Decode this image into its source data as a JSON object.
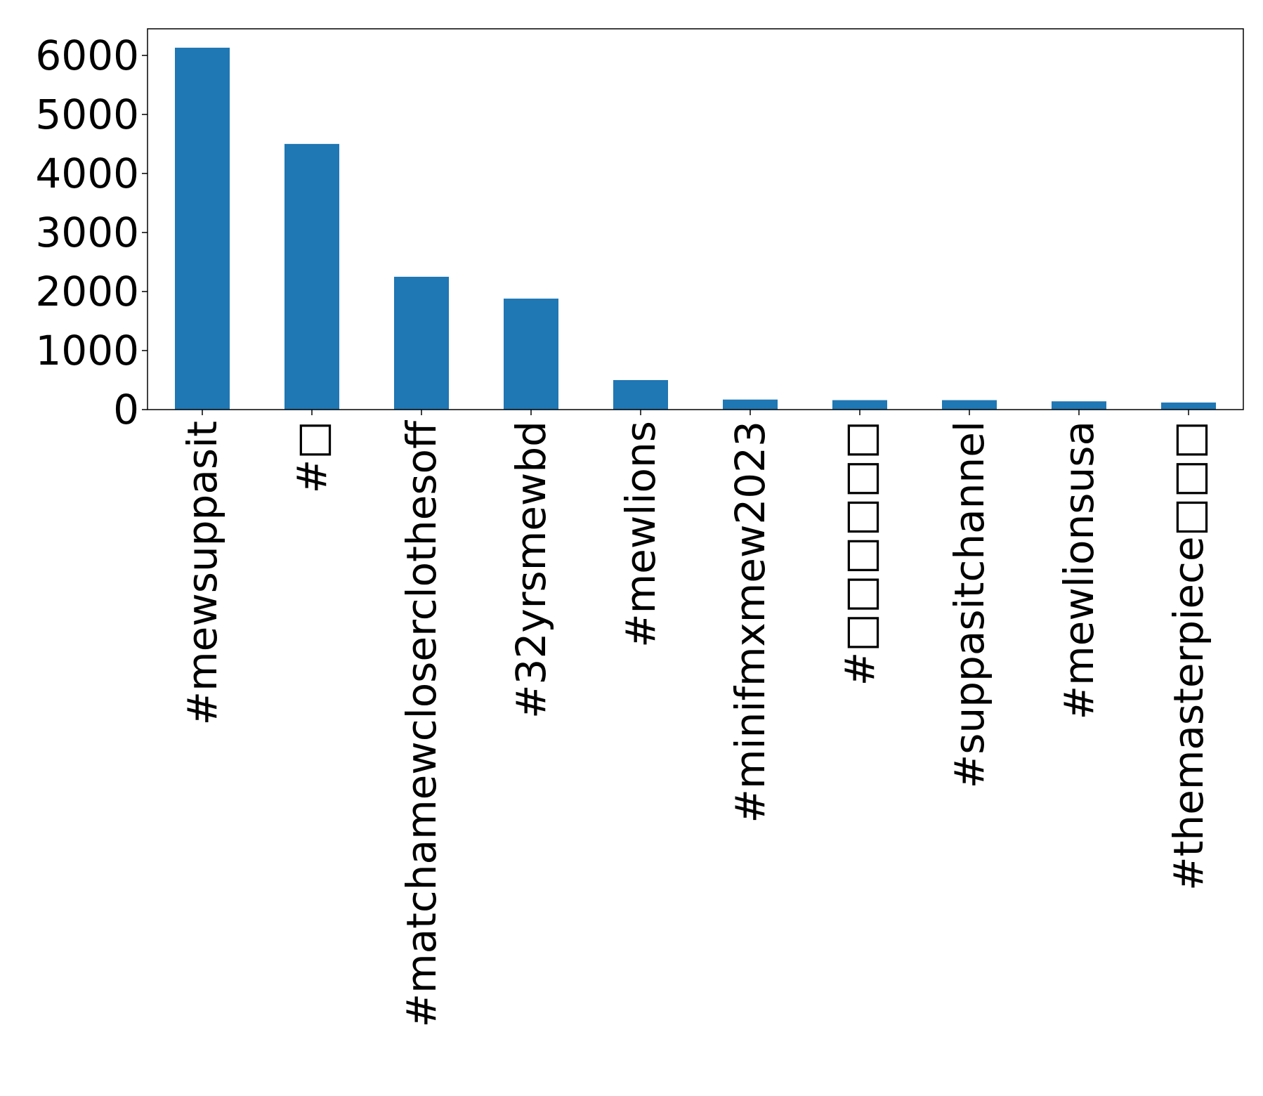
{
  "chart_data": {
    "type": "bar",
    "title": "",
    "xlabel": "",
    "ylabel": "",
    "categories": [
      "#mewsuppasit",
      "#□",
      "#matchamewcloserclothesoff",
      "#32yrsmewbd",
      "#mewlions",
      "#minifmxmew2023",
      "#□□□□□□",
      "#suppasitchannel",
      "#mewlionsusa",
      "#themasterpiece□□□"
    ],
    "values": [
      6130,
      4500,
      2250,
      1880,
      500,
      170,
      160,
      160,
      140,
      120
    ],
    "ylim": [
      0,
      6450
    ],
    "yticks": [
      0,
      1000,
      2000,
      3000,
      4000,
      5000,
      6000
    ],
    "grid": false,
    "legend": "none",
    "bar_color": "#1f77b4"
  }
}
